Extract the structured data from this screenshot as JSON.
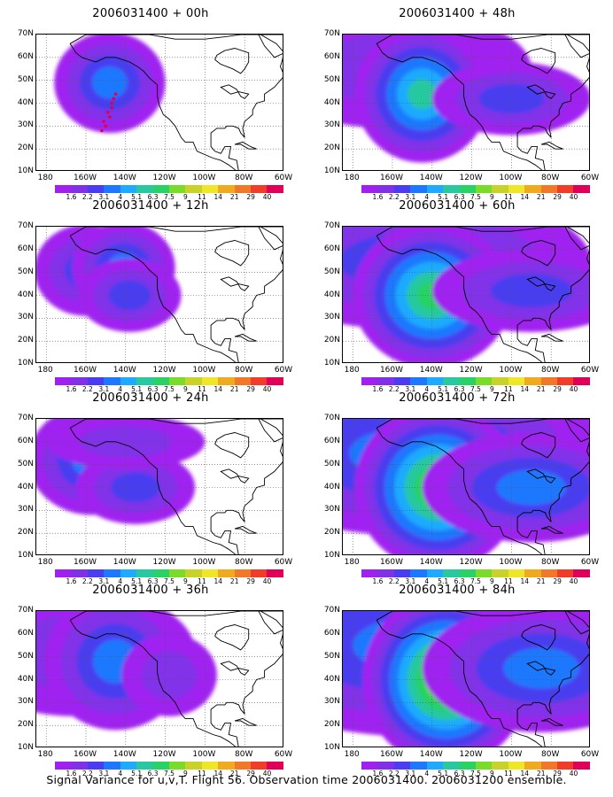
{
  "footer": "Signal Variance for u,v,T. Flight 56. Observation time 2006031400. 2006031200 ensemble.",
  "lat_labels": [
    "70N",
    "60N",
    "50N",
    "40N",
    "30N",
    "20N",
    "10N"
  ],
  "lon_labels": [
    "180",
    "160W",
    "140W",
    "120W",
    "100W",
    "80W",
    "60W"
  ],
  "colorbar": {
    "colors": [
      "#a020f0",
      "#8230e8",
      "#4a3cf0",
      "#1e78ff",
      "#1eaaff",
      "#28c8a0",
      "#28d264",
      "#78dc28",
      "#c8d228",
      "#f0e628",
      "#f0aa1e",
      "#f07828",
      "#f03c28",
      "#e0005a"
    ],
    "labels": [
      "1.6",
      "2.2",
      "3.1",
      "4",
      "5.1",
      "6.3",
      "7.5",
      "9",
      "11",
      "14",
      "21",
      "29",
      "40"
    ]
  },
  "panels": [
    {
      "title": "2006031400 + 00h",
      "col": 0,
      "row": 0,
      "blobs": [
        {
          "lon": -148,
          "lat": 49,
          "rx": 28,
          "ry": 22,
          "level": 3
        }
      ],
      "track": true
    },
    {
      "title": "2006031400 + 12h",
      "col": 0,
      "row": 1,
      "blobs": [
        {
          "lon": -160,
          "lat": 51,
          "rx": 26,
          "ry": 20,
          "level": 2
        },
        {
          "lon": -141,
          "lat": 52,
          "rx": 26,
          "ry": 20,
          "level": 3
        },
        {
          "lon": -138,
          "lat": 40,
          "rx": 26,
          "ry": 16,
          "level": 2
        }
      ]
    },
    {
      "title": "2006031400 + 24h",
      "col": 0,
      "row": 2,
      "blobs": [
        {
          "lon": -157,
          "lat": 52,
          "rx": 32,
          "ry": 24,
          "level": 3
        },
        {
          "lon": -135,
          "lat": 40,
          "rx": 30,
          "ry": 16,
          "level": 2
        },
        {
          "lon": -140,
          "lat": 60,
          "rx": 40,
          "ry": 12,
          "level": 1
        }
      ]
    },
    {
      "title": "2006031400 + 36h",
      "col": 0,
      "row": 3,
      "blobs": [
        {
          "lon": -165,
          "lat": 52,
          "rx": 60,
          "ry": 28,
          "level": 1
        },
        {
          "lon": -145,
          "lat": 48,
          "rx": 36,
          "ry": 30,
          "level": 3
        },
        {
          "lon": -118,
          "lat": 42,
          "rx": 24,
          "ry": 18,
          "level": 1
        }
      ]
    },
    {
      "title": "2006031400 + 48h",
      "col": 1,
      "row": 0,
      "blobs": [
        {
          "lon": -160,
          "lat": 55,
          "rx": 70,
          "ry": 26,
          "level": 1
        },
        {
          "lon": -145,
          "lat": 44,
          "rx": 34,
          "ry": 30,
          "level": 5
        },
        {
          "lon": -100,
          "lat": 42,
          "rx": 40,
          "ry": 16,
          "level": 2
        }
      ]
    },
    {
      "title": "2006031400 + 60h",
      "col": 1,
      "row": 1,
      "blobs": [
        {
          "lon": -150,
          "lat": 55,
          "rx": 90,
          "ry": 30,
          "level": 2
        },
        {
          "lon": -140,
          "lat": 40,
          "rx": 40,
          "ry": 32,
          "level": 6
        },
        {
          "lon": -90,
          "lat": 42,
          "rx": 50,
          "ry": 18,
          "level": 2
        }
      ]
    },
    {
      "title": "2006031400 + 72h",
      "col": 1,
      "row": 2,
      "blobs": [
        {
          "lon": -150,
          "lat": 55,
          "rx": 100,
          "ry": 36,
          "level": 3
        },
        {
          "lon": -137,
          "lat": 40,
          "rx": 42,
          "ry": 36,
          "level": 7
        },
        {
          "lon": -90,
          "lat": 40,
          "rx": 55,
          "ry": 24,
          "level": 3
        }
      ]
    },
    {
      "title": "2006031400 + 84h",
      "col": 1,
      "row": 3,
      "blobs": [
        {
          "lon": -145,
          "lat": 55,
          "rx": 110,
          "ry": 40,
          "level": 3
        },
        {
          "lon": -133,
          "lat": 40,
          "rx": 42,
          "ry": 38,
          "level": 8
        },
        {
          "lon": -85,
          "lat": 45,
          "rx": 60,
          "ry": 28,
          "level": 3
        }
      ]
    }
  ]
}
